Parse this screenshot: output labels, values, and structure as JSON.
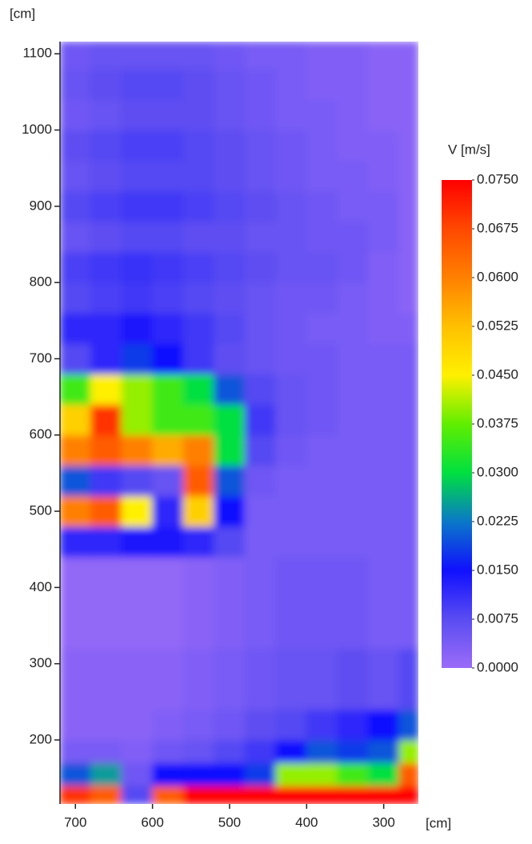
{
  "chart_data": {
    "type": "heatmap",
    "x_label": "[cm]",
    "y_label": "[cm]",
    "xlim": [
      720,
      255
    ],
    "ylim": [
      116,
      1116
    ],
    "xticks": [
      700,
      600,
      500,
      400,
      300
    ],
    "yticks": [
      200,
      300,
      400,
      500,
      600,
      700,
      800,
      900,
      1000,
      1100
    ],
    "xbins": [
      720,
      680,
      640,
      600,
      560,
      520,
      480,
      440,
      400,
      360,
      320,
      280,
      255
    ],
    "ybins": [
      116,
      140,
      170,
      200,
      240,
      280,
      320,
      360,
      400,
      440,
      480,
      520,
      560,
      600,
      640,
      680,
      720,
      760,
      800,
      840,
      880,
      920,
      960,
      1000,
      1040,
      1080,
      1116
    ],
    "z": [
      [
        0.07,
        0.065,
        0.008,
        0.065,
        0.075,
        0.075,
        0.075,
        0.075,
        0.075,
        0.075,
        0.075,
        0.075
      ],
      [
        0.02,
        0.025,
        0.005,
        0.015,
        0.015,
        0.015,
        0.018,
        0.04,
        0.04,
        0.035,
        0.03,
        0.065
      ],
      [
        0.004,
        0.004,
        0.003,
        0.005,
        0.006,
        0.008,
        0.01,
        0.015,
        0.02,
        0.018,
        0.02,
        0.04
      ],
      [
        0.002,
        0.002,
        0.002,
        0.003,
        0.004,
        0.005,
        0.007,
        0.008,
        0.01,
        0.012,
        0.015,
        0.02
      ],
      [
        0.002,
        0.002,
        0.002,
        0.002,
        0.003,
        0.004,
        0.005,
        0.006,
        0.006,
        0.007,
        0.006,
        0.008
      ],
      [
        0.002,
        0.002,
        0.002,
        0.002,
        0.003,
        0.004,
        0.005,
        0.006,
        0.006,
        0.007,
        0.006,
        0.008
      ],
      [
        0.001,
        0.001,
        0.001,
        0.001,
        0.002,
        0.003,
        0.004,
        0.005,
        0.005,
        0.005,
        0.004,
        0.004
      ],
      [
        0.001,
        0.001,
        0.001,
        0.001,
        0.002,
        0.003,
        0.004,
        0.005,
        0.005,
        0.005,
        0.004,
        0.004
      ],
      [
        0.001,
        0.001,
        0.001,
        0.001,
        0.002,
        0.003,
        0.004,
        0.005,
        0.005,
        0.005,
        0.004,
        0.004
      ],
      [
        0.012,
        0.012,
        0.014,
        0.014,
        0.012,
        0.008,
        0.004,
        0.004,
        0.004,
        0.004,
        0.004,
        0.004
      ],
      [
        0.06,
        0.065,
        0.045,
        0.012,
        0.05,
        0.015,
        0.004,
        0.004,
        0.004,
        0.004,
        0.004,
        0.004
      ],
      [
        0.02,
        0.01,
        0.008,
        0.006,
        0.065,
        0.02,
        0.005,
        0.004,
        0.004,
        0.004,
        0.004,
        0.004
      ],
      [
        0.06,
        0.065,
        0.06,
        0.055,
        0.06,
        0.03,
        0.008,
        0.005,
        0.004,
        0.004,
        0.004,
        0.004
      ],
      [
        0.05,
        0.07,
        0.04,
        0.035,
        0.035,
        0.03,
        0.01,
        0.006,
        0.005,
        0.004,
        0.004,
        0.004
      ],
      [
        0.035,
        0.045,
        0.04,
        0.035,
        0.03,
        0.02,
        0.008,
        0.006,
        0.005,
        0.004,
        0.004,
        0.004
      ],
      [
        0.008,
        0.012,
        0.018,
        0.015,
        0.01,
        0.007,
        0.006,
        0.005,
        0.005,
        0.004,
        0.004,
        0.004
      ],
      [
        0.012,
        0.012,
        0.014,
        0.012,
        0.01,
        0.008,
        0.006,
        0.005,
        0.004,
        0.004,
        0.003,
        0.003
      ],
      [
        0.008,
        0.009,
        0.01,
        0.009,
        0.008,
        0.007,
        0.006,
        0.005,
        0.005,
        0.004,
        0.003,
        0.002
      ],
      [
        0.009,
        0.01,
        0.011,
        0.01,
        0.009,
        0.008,
        0.007,
        0.006,
        0.006,
        0.005,
        0.003,
        0.002
      ],
      [
        0.006,
        0.007,
        0.008,
        0.008,
        0.007,
        0.007,
        0.006,
        0.006,
        0.005,
        0.005,
        0.004,
        0.002
      ],
      [
        0.008,
        0.009,
        0.01,
        0.01,
        0.009,
        0.008,
        0.007,
        0.006,
        0.005,
        0.004,
        0.004,
        0.002
      ],
      [
        0.006,
        0.007,
        0.008,
        0.008,
        0.008,
        0.007,
        0.006,
        0.005,
        0.004,
        0.004,
        0.003,
        0.002
      ],
      [
        0.007,
        0.008,
        0.009,
        0.009,
        0.008,
        0.007,
        0.006,
        0.005,
        0.004,
        0.003,
        0.003,
        0.002
      ],
      [
        0.005,
        0.006,
        0.007,
        0.007,
        0.007,
        0.006,
        0.005,
        0.004,
        0.004,
        0.003,
        0.002,
        0.002
      ],
      [
        0.006,
        0.007,
        0.008,
        0.008,
        0.007,
        0.006,
        0.005,
        0.004,
        0.003,
        0.003,
        0.002,
        0.002
      ],
      [
        0.005,
        0.006,
        0.006,
        0.006,
        0.006,
        0.005,
        0.004,
        0.004,
        0.003,
        0.003,
        0.002,
        0.002
      ]
    ],
    "colorbar": {
      "title": "V [m/s]",
      "ticks": [
        {
          "value": 0,
          "label": "0.0000"
        },
        {
          "value": 0.0075,
          "label": "0.0075"
        },
        {
          "value": 0.015,
          "label": "0.0150"
        },
        {
          "value": 0.0225,
          "label": "0.0225"
        },
        {
          "value": 0.03,
          "label": "0.0300"
        },
        {
          "value": 0.0375,
          "label": "0.0375"
        },
        {
          "value": 0.045,
          "label": "0.0450"
        },
        {
          "value": 0.0525,
          "label": "0.0525"
        },
        {
          "value": 0.06,
          "label": "0.0600"
        },
        {
          "value": 0.0675,
          "label": "0.0675"
        },
        {
          "value": 0.075,
          "label": "0.0750"
        }
      ],
      "colors": [
        "#9b6cf8",
        "#5a4cf2",
        "#1010ff",
        "#0a78c8",
        "#00e040",
        "#60ee00",
        "#fff000",
        "#ffc000",
        "#ff8000",
        "#ff4800",
        "#ff0000"
      ]
    }
  }
}
